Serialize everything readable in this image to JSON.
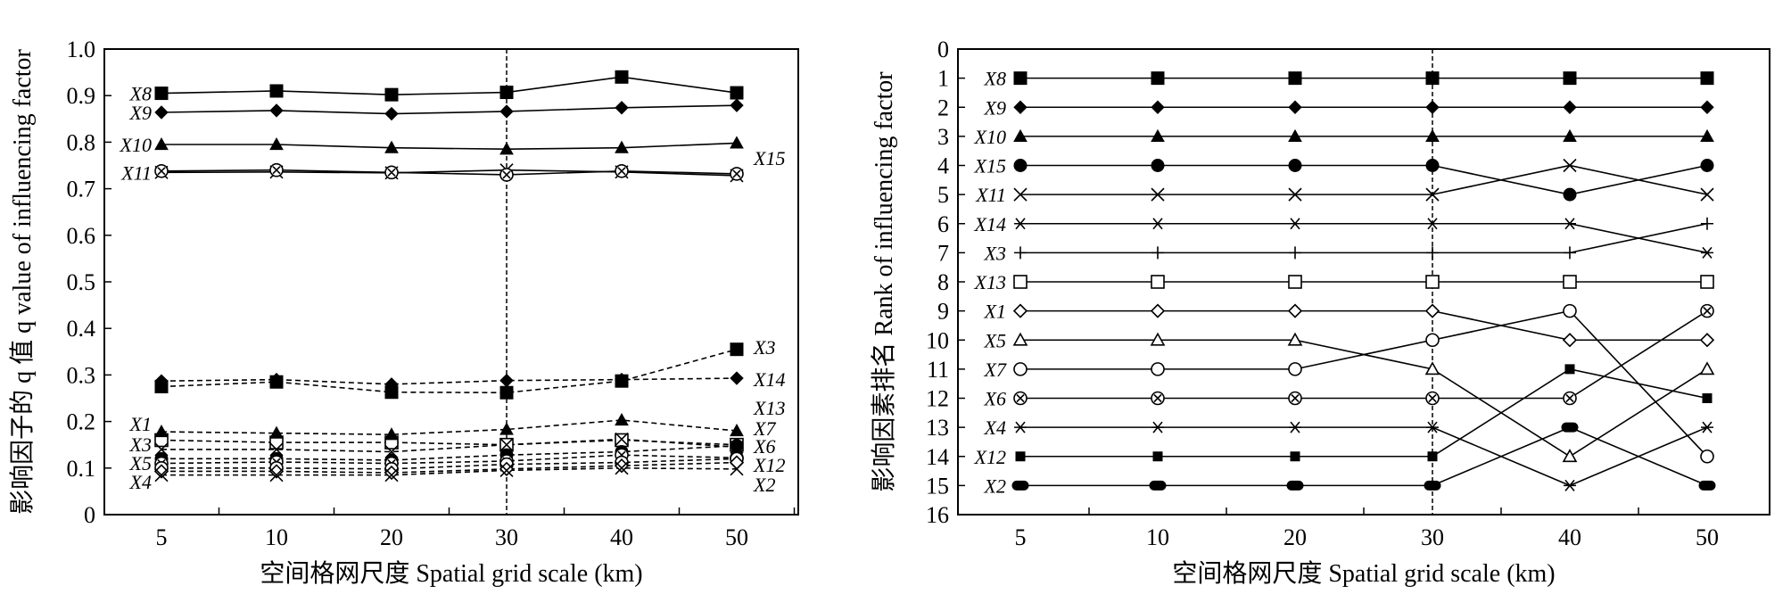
{
  "chart_data": [
    {
      "type": "line",
      "ylabel": "影响因子的 q 值 q value of influencing factor",
      "xlabel": "空间格网尺度 Spatial grid scale (km)",
      "categories": [
        "5",
        "10",
        "20",
        "30",
        "40",
        "50"
      ],
      "ylim": [
        0,
        1.0
      ],
      "yticks": [
        "0",
        "0.1",
        "0.2",
        "0.3",
        "0.4",
        "0.5",
        "0.6",
        "0.7",
        "0.8",
        "0.9",
        "1.0"
      ],
      "reference_line_at": "30",
      "series": [
        {
          "name": "X8",
          "values": [
            0.905,
            0.91,
            0.902,
            0.907,
            0.94,
            0.906
          ],
          "line": "solid",
          "marker": "square"
        },
        {
          "name": "X9",
          "values": [
            0.864,
            0.868,
            0.861,
            0.866,
            0.874,
            0.879
          ],
          "line": "solid",
          "marker": "diamond"
        },
        {
          "name": "X10",
          "values": [
            0.795,
            0.795,
            0.788,
            0.785,
            0.788,
            0.798
          ],
          "line": "solid",
          "marker": "triangle"
        },
        {
          "name": "X11",
          "values": [
            0.735,
            0.736,
            0.734,
            0.74,
            0.736,
            0.728
          ],
          "line": "solid",
          "marker": "x"
        },
        {
          "name": "X15",
          "values": [
            0.738,
            0.74,
            0.735,
            0.73,
            0.738,
            0.732
          ],
          "line": "solid",
          "marker": "circle-x"
        },
        {
          "name": "X3",
          "values": [
            0.275,
            0.285,
            0.263,
            0.262,
            0.287,
            0.355
          ],
          "line": "dashed",
          "marker": "square"
        },
        {
          "name": "X14",
          "values": [
            0.287,
            0.29,
            0.28,
            0.288,
            0.29,
            0.293
          ],
          "line": "dashed",
          "marker": "diamond"
        },
        {
          "name": "X13",
          "values": [
            0.16,
            0.155,
            0.155,
            0.15,
            0.16,
            0.15
          ],
          "line": "dashed",
          "marker": "open-square"
        },
        {
          "name": "X7",
          "values": [
            0.178,
            0.175,
            0.172,
            0.183,
            0.203,
            0.18
          ],
          "line": "dashed",
          "marker": "triangle"
        },
        {
          "name": "X1",
          "values": [
            0.14,
            0.14,
            0.135,
            0.15,
            0.162,
            0.145
          ],
          "line": "dashed",
          "marker": "x"
        },
        {
          "name": "X6",
          "values": [
            0.12,
            0.12,
            0.117,
            0.128,
            0.135,
            0.148
          ],
          "line": "dashed",
          "marker": "circle"
        },
        {
          "name": "X5",
          "values": [
            0.11,
            0.113,
            0.11,
            0.115,
            0.128,
            0.122
          ],
          "line": "dashed",
          "marker": "circle-x"
        },
        {
          "name": "X12",
          "values": [
            0.1,
            0.1,
            0.098,
            0.108,
            0.112,
            0.12
          ],
          "line": "dashed",
          "marker": "open-circle"
        },
        {
          "name": "X4",
          "values": [
            0.093,
            0.093,
            0.09,
            0.098,
            0.105,
            0.112
          ],
          "line": "dashed",
          "marker": "open-diamond"
        },
        {
          "name": "X2",
          "values": [
            0.085,
            0.085,
            0.085,
            0.095,
            0.1,
            0.098
          ],
          "line": "dashed",
          "marker": "x"
        }
      ],
      "left_label_order": [
        "X8",
        "X9",
        "X10",
        "X11",
        "X1",
        "X3",
        "X5",
        "X4"
      ],
      "right_label_order": [
        "X15",
        "X3",
        "X14",
        "X13",
        "X7",
        "X6",
        "X12",
        "X2"
      ]
    },
    {
      "type": "line",
      "ylabel": "影响因素排名 Rank of influencing factor",
      "xlabel": "空间格网尺度 Spatial grid scale (km)",
      "categories": [
        "5",
        "10",
        "20",
        "30",
        "40",
        "50"
      ],
      "ylim": [
        0,
        16
      ],
      "y_inverted": true,
      "yticks": [
        "0",
        "1",
        "2",
        "3",
        "4",
        "5",
        "6",
        "7",
        "8",
        "9",
        "10",
        "11",
        "12",
        "13",
        "14",
        "15",
        "16"
      ],
      "reference_line_at": "30",
      "series": [
        {
          "name": "X8",
          "values": [
            1,
            1,
            1,
            1,
            1,
            1
          ],
          "marker": "square"
        },
        {
          "name": "X9",
          "values": [
            2,
            2,
            2,
            2,
            2,
            2
          ],
          "marker": "diamond"
        },
        {
          "name": "X10",
          "values": [
            3,
            3,
            3,
            3,
            3,
            3
          ],
          "marker": "triangle"
        },
        {
          "name": "X15",
          "values": [
            4,
            4,
            4,
            4,
            5,
            4
          ],
          "marker": "circle"
        },
        {
          "name": "X11",
          "values": [
            5,
            5,
            5,
            5,
            4,
            5
          ],
          "marker": "x"
        },
        {
          "name": "X14",
          "values": [
            6,
            6,
            6,
            6,
            6,
            7
          ],
          "marker": "star"
        },
        {
          "name": "X3",
          "values": [
            7,
            7,
            7,
            7,
            7,
            6
          ],
          "marker": "plus"
        },
        {
          "name": "X13",
          "values": [
            8,
            8,
            8,
            8,
            8,
            8
          ],
          "marker": "open-square"
        },
        {
          "name": "X1",
          "values": [
            9,
            9,
            9,
            9,
            10,
            10
          ],
          "marker": "open-diamond"
        },
        {
          "name": "X5",
          "values": [
            10,
            10,
            10,
            11,
            14,
            11
          ],
          "marker": "open-triangle"
        },
        {
          "name": "X7",
          "values": [
            11,
            11,
            11,
            10,
            9,
            14
          ],
          "marker": "open-circle"
        },
        {
          "name": "X6",
          "values": [
            12,
            12,
            12,
            12,
            12,
            9
          ],
          "marker": "circle-x"
        },
        {
          "name": "X4",
          "values": [
            13,
            13,
            13,
            13,
            15,
            13
          ],
          "marker": "asterisk"
        },
        {
          "name": "X12",
          "values": [
            14,
            14,
            14,
            14,
            11,
            12
          ],
          "marker": "small-square"
        },
        {
          "name": "X2",
          "values": [
            15,
            15,
            15,
            15,
            13,
            15
          ],
          "marker": "bar"
        }
      ]
    }
  ]
}
